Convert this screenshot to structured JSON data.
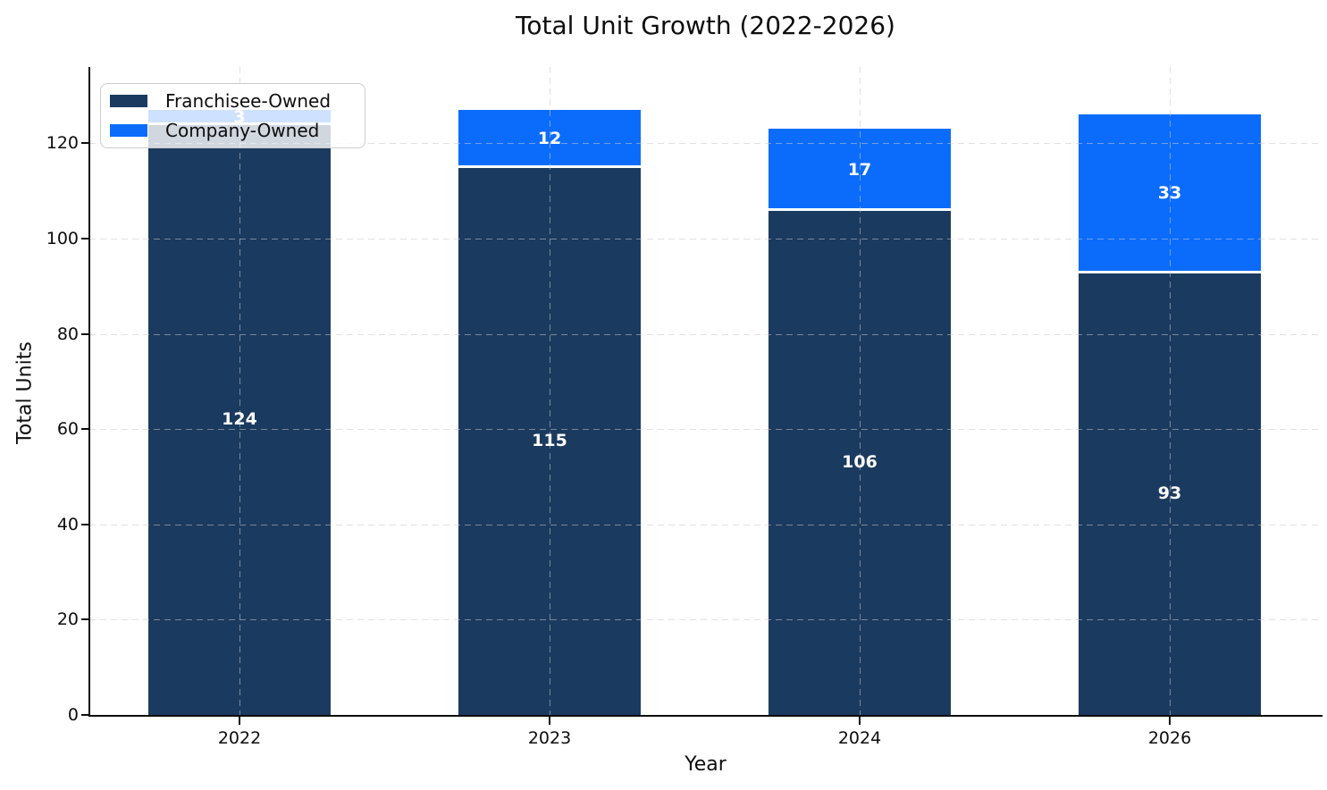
{
  "chart_data": {
    "type": "bar",
    "stacked": true,
    "title": "Total Unit Growth (2022-2026)",
    "xlabel": "Year",
    "ylabel": "Total Units",
    "categories": [
      "2022",
      "2023",
      "2024",
      "2026"
    ],
    "series": [
      {
        "name": "Franchisee-Owned",
        "color": "#1b3a5f",
        "values": [
          124,
          115,
          106,
          93
        ]
      },
      {
        "name": "Company-Owned",
        "color": "#0b6cfb",
        "values": [
          3,
          12,
          17,
          33
        ]
      }
    ],
    "totals": [
      127,
      127,
      123,
      126
    ],
    "bar_value_label_color": "#ffffff",
    "yticks": [
      0,
      20,
      40,
      60,
      80,
      100,
      120
    ],
    "ylim": [
      0,
      136
    ],
    "grid": {
      "on": true,
      "style": "dashed",
      "color": "#cccccc",
      "axisbelow": false
    },
    "legend": {
      "position": "upper left",
      "entries": [
        "Franchisee-Owned",
        "Company-Owned"
      ]
    },
    "background": "#ffffff"
  }
}
